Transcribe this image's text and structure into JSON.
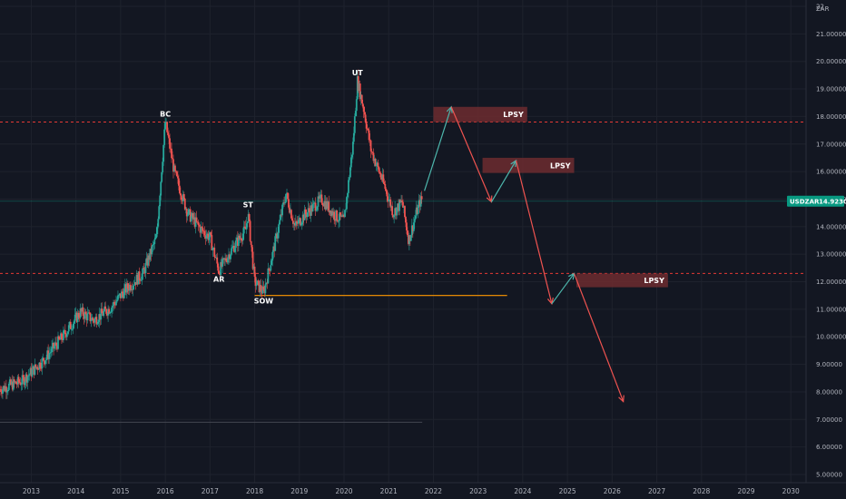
{
  "colors": {
    "background": "#131722",
    "grid": "#1e222d",
    "up": "#26a69a",
    "down": "#ef5350",
    "resistance": "#e53935",
    "sow_line": "#ff9800",
    "arrow_up": "#4db6ac",
    "arrow_down": "#ef5350",
    "zone_fill": "#6d2b2f",
    "price_badge": "#089981"
  },
  "chart_data": {
    "type": "candlestick",
    "symbol": "USDZAR",
    "currency": "ZAR",
    "last_price": "14.92300",
    "ylim": [
      5,
      22
    ],
    "xlim": [
      2012.3,
      2030.3
    ],
    "y_ticks": [
      "5.00000",
      "6.00000",
      "7.00000",
      "8.00000",
      "9.00000",
      "10.00000",
      "11.00000",
      "12.00000",
      "13.00000",
      "14.00000",
      "15.00000",
      "16.00000",
      "17.00000",
      "18.00000",
      "19.00000",
      "20.00000",
      "21.00000",
      "22"
    ],
    "x_ticks": [
      "2013",
      "2014",
      "2015",
      "2016",
      "2017",
      "2018",
      "2019",
      "2020",
      "2021",
      "2022",
      "2023",
      "2024",
      "2025",
      "2026",
      "2027",
      "2028",
      "2029",
      "2030"
    ],
    "price_path": [
      [
        2012.3,
        8.1
      ],
      [
        2012.8,
        8.4
      ],
      [
        2013.3,
        9.2
      ],
      [
        2013.7,
        10.0
      ],
      [
        2014.1,
        10.9
      ],
      [
        2014.4,
        10.6
      ],
      [
        2014.8,
        11.1
      ],
      [
        2015.1,
        11.7
      ],
      [
        2015.5,
        12.3
      ],
      [
        2015.8,
        13.6
      ],
      [
        2016.0,
        17.8
      ],
      [
        2016.2,
        16.0
      ],
      [
        2016.5,
        14.5
      ],
      [
        2016.8,
        13.9
      ],
      [
        2017.0,
        13.6
      ],
      [
        2017.2,
        12.4
      ],
      [
        2017.5,
        13.2
      ],
      [
        2017.8,
        13.9
      ],
      [
        2017.85,
        14.5
      ],
      [
        2018.0,
        12.0
      ],
      [
        2018.2,
        11.6
      ],
      [
        2018.4,
        13.0
      ],
      [
        2018.7,
        15.2
      ],
      [
        2018.9,
        14.0
      ],
      [
        2019.1,
        14.4
      ],
      [
        2019.5,
        15.0
      ],
      [
        2019.8,
        14.4
      ],
      [
        2020.0,
        14.2
      ],
      [
        2020.2,
        17.0
      ],
      [
        2020.3,
        19.3
      ],
      [
        2020.45,
        18.2
      ],
      [
        2020.6,
        16.8
      ],
      [
        2020.9,
        15.5
      ],
      [
        2021.1,
        14.5
      ],
      [
        2021.3,
        14.9
      ],
      [
        2021.45,
        13.5
      ],
      [
        2021.6,
        14.4
      ],
      [
        2021.7,
        14.9
      ],
      [
        2021.75,
        15.0
      ]
    ],
    "resistance_levels": [
      17.8,
      12.3
    ],
    "sow_level": 11.5,
    "sow_range": [
      2018.0,
      2023.65
    ],
    "base_level": 6.9,
    "base_range": [
      2012.3,
      2021.75
    ],
    "annotations": [
      {
        "text": "BC",
        "x": 2016.0,
        "y": 17.8,
        "pos": "above"
      },
      {
        "text": "AR",
        "x": 2017.2,
        "y": 12.4,
        "pos": "below"
      },
      {
        "text": "ST",
        "x": 2017.85,
        "y": 14.5,
        "pos": "above"
      },
      {
        "text": "SOW",
        "x": 2018.2,
        "y": 11.6,
        "pos": "below"
      },
      {
        "text": "UT",
        "x": 2020.3,
        "y": 19.3,
        "pos": "above"
      }
    ],
    "zones": [
      {
        "label": "LPSY",
        "x0": 2022.0,
        "x1": 2024.1,
        "y0": 17.8,
        "y1": 18.35
      },
      {
        "label": "LPSY",
        "x0": 2023.1,
        "x1": 2025.15,
        "y0": 15.95,
        "y1": 16.5
      },
      {
        "label": "LPSY",
        "x0": 2025.2,
        "x1": 2027.25,
        "y0": 11.8,
        "y1": 12.3
      }
    ],
    "projection": [
      {
        "from": [
          2021.8,
          15.3
        ],
        "to": [
          2022.4,
          18.35
        ],
        "dir": "up"
      },
      {
        "from": [
          2022.4,
          18.35
        ],
        "to": [
          2023.3,
          14.9
        ],
        "dir": "down"
      },
      {
        "from": [
          2023.3,
          14.9
        ],
        "to": [
          2023.85,
          16.4
        ],
        "dir": "up"
      },
      {
        "from": [
          2023.85,
          16.4
        ],
        "to": [
          2024.65,
          11.2
        ],
        "dir": "down"
      },
      {
        "from": [
          2024.65,
          11.2
        ],
        "to": [
          2025.15,
          12.3
        ],
        "dir": "up"
      },
      {
        "from": [
          2025.15,
          12.3
        ],
        "to": [
          2026.25,
          7.65
        ],
        "dir": "down"
      }
    ]
  }
}
